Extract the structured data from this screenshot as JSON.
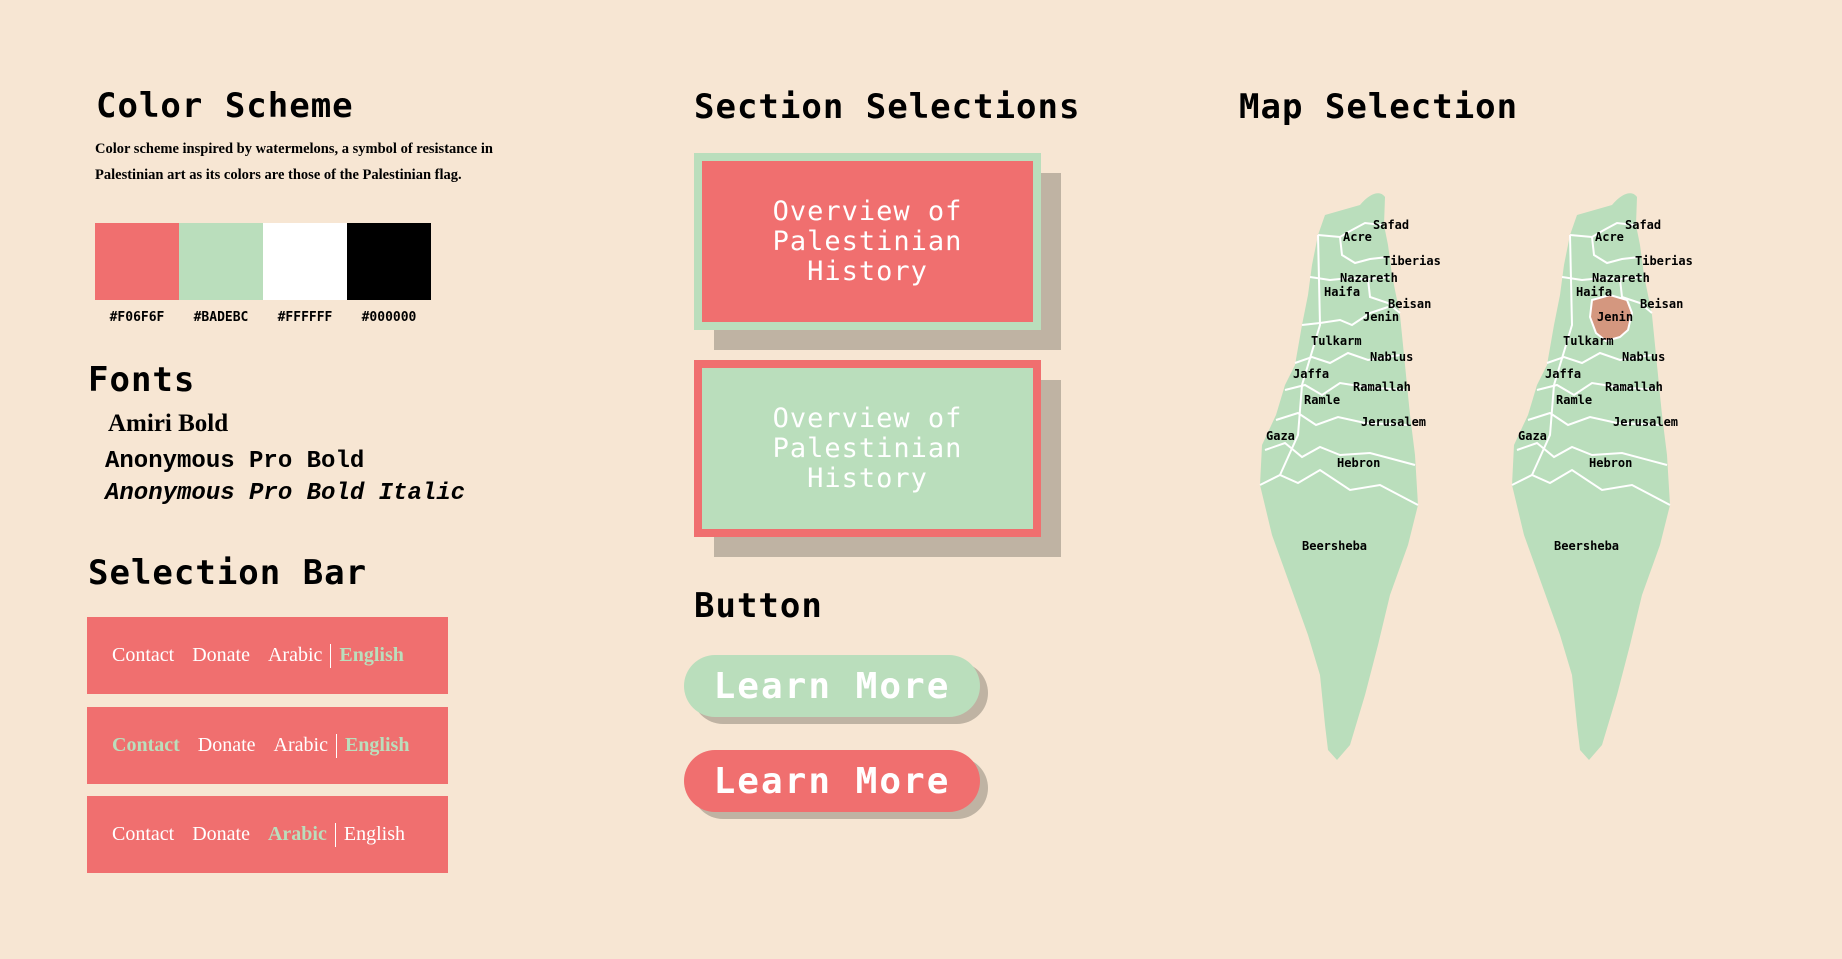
{
  "color_scheme": {
    "title": "Color Scheme",
    "description": "Color scheme inspired by watermelons, a symbol of resistance in Palestinian art as its colors are those of the Palestinian flag.",
    "swatches": [
      {
        "hex": "#F06F6F",
        "label": "#F06F6F"
      },
      {
        "hex": "#BADEBC",
        "label": "#BADEBC"
      },
      {
        "hex": "#FFFFFF",
        "label": "#FFFFFF"
      },
      {
        "hex": "#000000",
        "label": "#000000"
      }
    ]
  },
  "fonts": {
    "title": "Fonts",
    "items": [
      "Amiri Bold",
      "Anonymous Pro Bold",
      "Anonymous Pro Bold Italic"
    ]
  },
  "selection_bar": {
    "title": "Selection Bar",
    "bars": [
      {
        "items": [
          "Contact",
          "Donate",
          "Arabic",
          "English"
        ],
        "active": "English"
      },
      {
        "items": [
          "Contact",
          "Donate",
          "Arabic",
          "English"
        ],
        "active_items": [
          "Contact",
          "English"
        ]
      },
      {
        "items": [
          "Contact",
          "Donate",
          "Arabic",
          "English"
        ],
        "active": "Arabic"
      }
    ]
  },
  "section_selections": {
    "title": "Section Selections",
    "cards": [
      {
        "text": "Overview of\nPalestinian\nHistory",
        "style": "red with green border"
      },
      {
        "text": "Overview of\nPalestinian\nHistory",
        "style": "green with red border"
      }
    ]
  },
  "button": {
    "title": "Button",
    "buttons": [
      {
        "label": "Learn More",
        "color": "#BADEBC"
      },
      {
        "label": "Learn More",
        "color": "#F06F6F"
      }
    ]
  },
  "map_selection": {
    "title": "Map Selection",
    "districts": [
      "Safad",
      "Acre",
      "Tiberias",
      "Nazareth",
      "Haifa",
      "Beisan",
      "Jenin",
      "Tulkarm",
      "Nablus",
      "Jaffa",
      "Ramallah",
      "Ramle",
      "Jerusalem",
      "Gaza",
      "Hebron",
      "Beersheba"
    ],
    "highlighted": "Jenin",
    "highlight_color": "#D4977F",
    "land_color": "#BADEBC"
  },
  "colors": {
    "background": "#F7E6D3",
    "shadow": "#BFB3A3"
  }
}
